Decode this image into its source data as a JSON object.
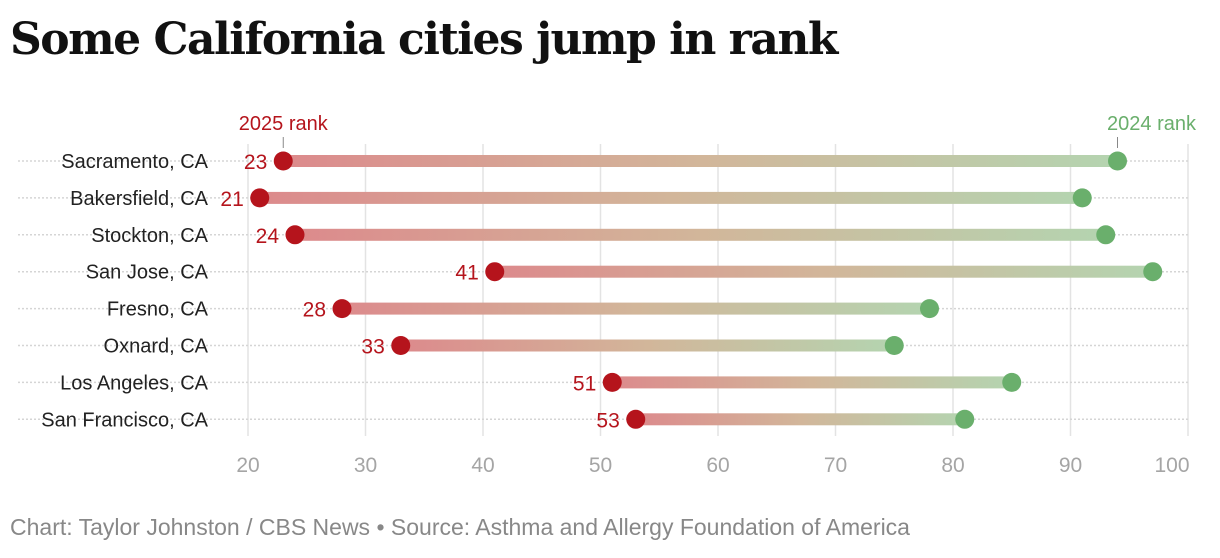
{
  "title": "Some California cities jump in rank",
  "footer": "Chart: Taylor Johnston / CBS News • Source: Asthma and Allergy Foundation of America",
  "chart_data": {
    "type": "dumbbell",
    "categories": [
      "Sacramento, CA",
      "Bakersfield, CA",
      "Stockton, CA",
      "San Jose, CA",
      "Fresno, CA",
      "Oxnard, CA",
      "Los Angeles, CA",
      "San Francisco, CA"
    ],
    "series": [
      {
        "name": "2025 rank",
        "values": [
          23,
          21,
          24,
          41,
          28,
          33,
          51,
          53
        ],
        "color": "#b5141c"
      },
      {
        "name": "2024 rank",
        "values": [
          94,
          91,
          93,
          97,
          78,
          75,
          85,
          81
        ],
        "color": "#6aaf6c"
      }
    ],
    "xlim": [
      20,
      100
    ],
    "xticks": [
      20,
      30,
      40,
      50,
      60,
      70,
      80,
      90,
      100
    ],
    "grid": true
  }
}
